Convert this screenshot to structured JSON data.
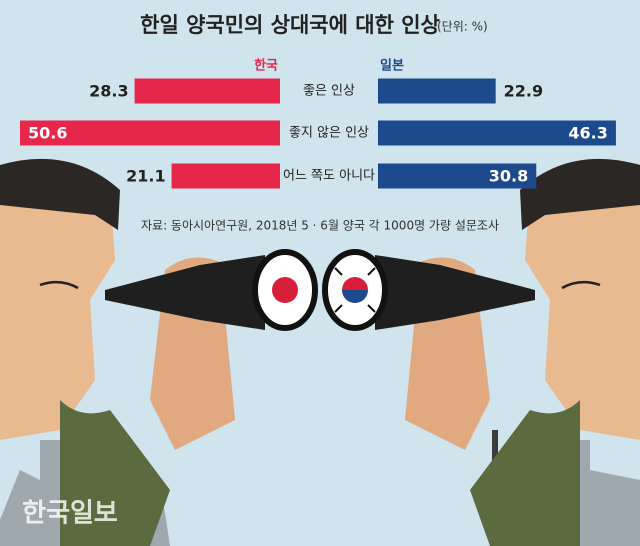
{
  "chart_data": {
    "type": "bar",
    "orientation": "back-to-back",
    "title": "한일 양국민의 상대국에 대한 인상",
    "subtitle": "(단위: %)",
    "categories": [
      "좋은 인상",
      "좋지 않은 인상",
      "어느 쪽도 아니다"
    ],
    "series": [
      {
        "name": "한국",
        "color": "#e6264a",
        "values": [
          28.3,
          50.6,
          21.1
        ]
      },
      {
        "name": "일본",
        "color": "#1d4a8c",
        "values": [
          22.9,
          46.3,
          30.8
        ]
      }
    ],
    "source": "자료: 동아시아연구원, 2018년 5 · 6월 양국 각 1000명 가량 설문조사",
    "watermark": "한국일보"
  }
}
